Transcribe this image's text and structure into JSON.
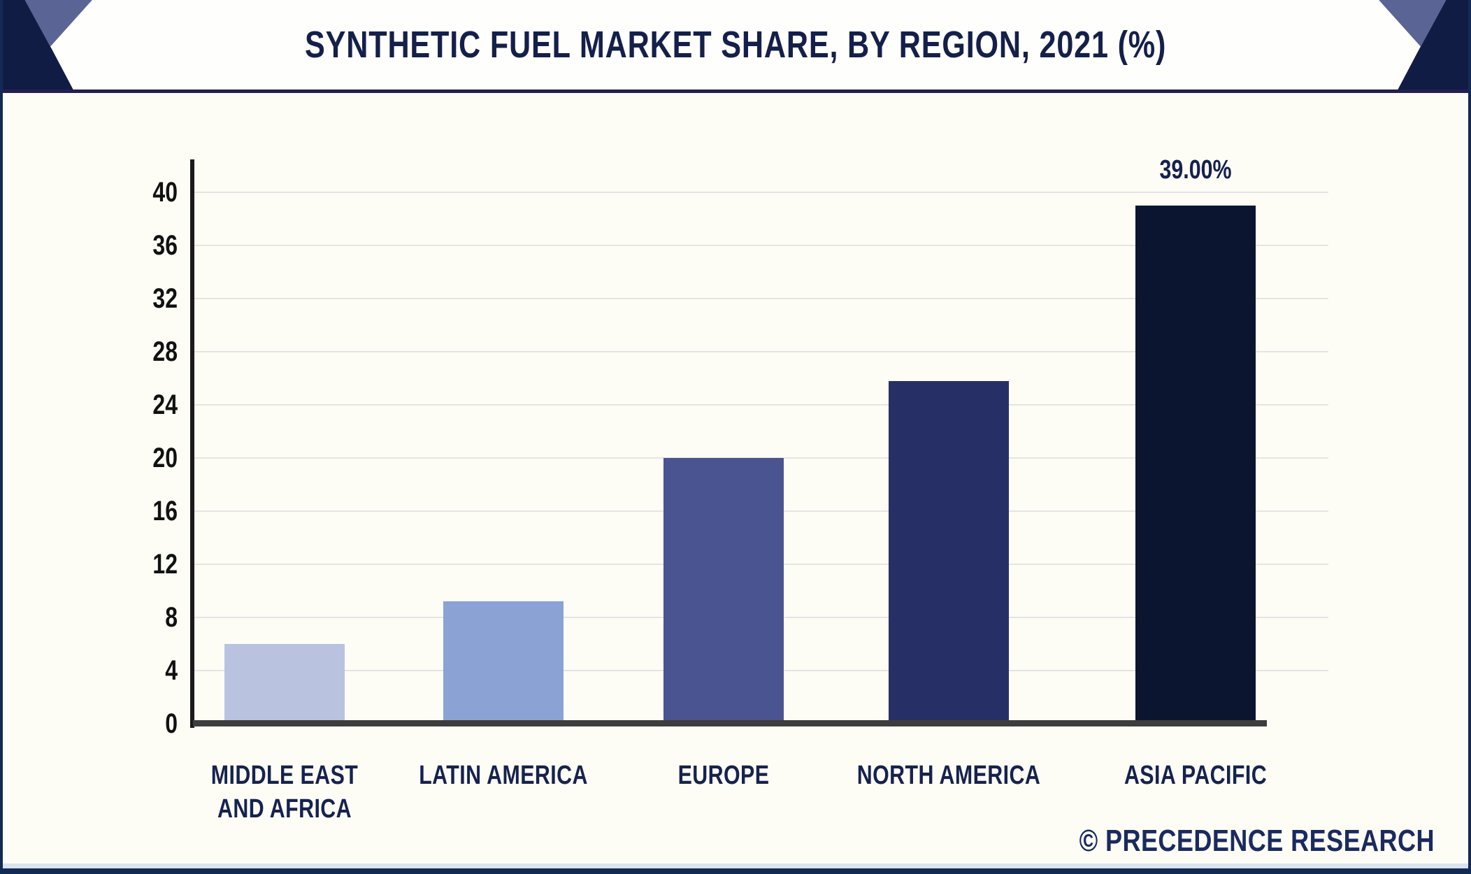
{
  "header": {
    "title": "SYNTHETIC FUEL MARKET SHARE, BY REGION, 2021 (%)"
  },
  "chart_data": {
    "type": "bar",
    "title": "SYNTHETIC FUEL MARKET SHARE, BY REGION, 2021 (%)",
    "categories": [
      "MIDDLE EAST AND AFRICA",
      "LATIN AMERICA",
      "EUROPE",
      "NORTH AMERICA",
      "ASIA PACIFIC"
    ],
    "category_lines": [
      [
        "MIDDLE EAST",
        "AND AFRICA"
      ],
      [
        "LATIN AMERICA"
      ],
      [
        "EUROPE"
      ],
      [
        "NORTH AMERICA"
      ],
      [
        "ASIA PACIFIC"
      ]
    ],
    "values": [
      6,
      9.2,
      20,
      25.8,
      39
    ],
    "unit": "%",
    "data_labels": [
      null,
      null,
      null,
      null,
      "39.00%"
    ],
    "yticks": [
      0,
      4,
      8,
      12,
      16,
      20,
      24,
      28,
      32,
      36,
      40
    ],
    "ylim": [
      0,
      42.5
    ],
    "grid": true,
    "legend": false,
    "bar_colors": [
      "#b9c3e0",
      "#8ba3d4",
      "#4a5490",
      "#273066",
      "#0c1530"
    ]
  },
  "footer": {
    "copyright": "© PRECEDENCE RESEARCH"
  },
  "colors": {
    "header_bg": "#111c44",
    "corner_accent": "#5a6596",
    "banner_bg": "#fefefc",
    "title_text": "#14204a",
    "body_bg": "#fdfdf6",
    "grid_line": "#e4e4e4",
    "y_axis": "#1a1a1a",
    "x_axis": "#3d3d3d",
    "tick_text": "#111111",
    "category_text": "#16224e",
    "value_label_text": "#15214d",
    "footer_text": "#1b2a5e",
    "border": "#132a54",
    "bottom_strip": "#d9e4ef",
    "divider": "#23204f"
  }
}
